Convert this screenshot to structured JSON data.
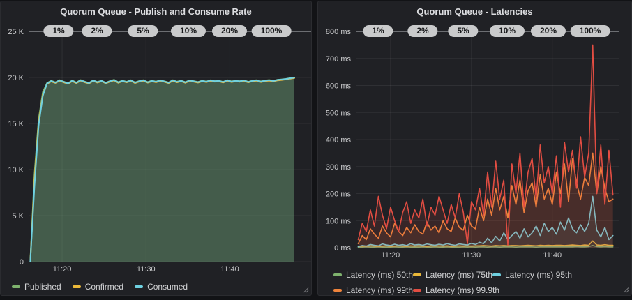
{
  "colors": {
    "page_bg": "#121316",
    "panel_bg": "#202125",
    "title_text": "#dcdde0",
    "axis_text": "#c8c9cb",
    "legend_text": "#d0d1d3",
    "grid": "rgba(255,255,255,0.07)",
    "annotation_line": "#85878b",
    "pill_bg": "#c9cacb",
    "pill_text": "#17181a",
    "handle": "#6f7175"
  },
  "chart_data": [
    {
      "type": "line",
      "title": "Quorum Queue - Publish and Consume Rate",
      "xlabel": "",
      "ylabel": "",
      "ylim": [
        0,
        25000
      ],
      "xlim": [
        -0.2,
        33.5
      ],
      "grid": true,
      "legend_position": "bottom",
      "y_ticks": [
        {
          "v": 25000,
          "label": "25 K"
        },
        {
          "v": 20000,
          "label": "20 K"
        },
        {
          "v": 15000,
          "label": "15 K"
        },
        {
          "v": 10000,
          "label": "10 K"
        },
        {
          "v": 5000,
          "label": "5 K"
        },
        {
          "v": 0,
          "label": "0"
        }
      ],
      "x_ticks": [
        {
          "t": 3.8,
          "label": "11:20"
        },
        {
          "t": 13.8,
          "label": "11:30"
        },
        {
          "t": 23.8,
          "label": "11:40"
        }
      ],
      "annotations": [
        "1%",
        "2%",
        "5%",
        "10%",
        "20%",
        "100%"
      ],
      "t_start": 0,
      "t_step": 0.5,
      "series": [
        {
          "name": "Published",
          "color": "#7EB26D",
          "fill_opacity": 0.35,
          "values": [
            150,
            9500,
            15500,
            18400,
            19400,
            19650,
            19480,
            19720,
            19550,
            19380,
            19680,
            19460,
            19730,
            19560,
            19420,
            19700,
            19520,
            19660,
            19440,
            19620,
            19760,
            19500,
            19670,
            19540,
            19710,
            19470,
            19630,
            19720,
            19510,
            19660,
            19560,
            19710,
            19600,
            19460,
            19720,
            19550,
            19670,
            19500,
            19700,
            19610,
            19520,
            19660,
            19570,
            19710,
            19620,
            19670,
            19530,
            19720,
            19580,
            19660,
            19610,
            19700,
            19540,
            19670,
            19720,
            19580,
            19680,
            19730,
            19650,
            19760,
            19800,
            19850,
            19930,
            19980
          ]
        },
        {
          "name": "Confirmed",
          "color": "#EAB839",
          "fill_opacity": 0,
          "values": [
            0,
            8900,
            15100,
            18100,
            19300,
            19560,
            19400,
            19640,
            19460,
            19300,
            19600,
            19380,
            19650,
            19480,
            19340,
            19620,
            19440,
            19580,
            19360,
            19540,
            19680,
            19420,
            19590,
            19460,
            19630,
            19390,
            19550,
            19640,
            19430,
            19580,
            19480,
            19630,
            19520,
            19380,
            19640,
            19470,
            19590,
            19420,
            19620,
            19530,
            19440,
            19580,
            19490,
            19630,
            19540,
            19590,
            19450,
            19640,
            19500,
            19580,
            19530,
            19620,
            19460,
            19590,
            19640,
            19500,
            19600,
            19650,
            19570,
            19680,
            19730,
            19790,
            19870,
            19940
          ]
        },
        {
          "name": "Consumed",
          "color": "#6ED0E0",
          "fill_opacity": 0.08,
          "values": [
            0,
            8200,
            14800,
            18000,
            19350,
            19620,
            19450,
            19700,
            19520,
            19350,
            19650,
            19430,
            19700,
            19530,
            19390,
            19680,
            19490,
            19640,
            19410,
            19600,
            19730,
            19470,
            19640,
            19510,
            19690,
            19440,
            19600,
            19700,
            19480,
            19640,
            19530,
            19690,
            19570,
            19430,
            19700,
            19520,
            19640,
            19470,
            19680,
            19580,
            19490,
            19640,
            19540,
            19690,
            19590,
            19640,
            19500,
            19700,
            19550,
            19640,
            19580,
            19680,
            19510,
            19640,
            19700,
            19550,
            19650,
            19710,
            19620,
            19740,
            19780,
            19840,
            19920,
            20000
          ]
        }
      ]
    },
    {
      "type": "line",
      "title": "Quorum Queue - Latencies",
      "xlabel": "",
      "ylabel": "",
      "ylim": [
        0,
        800
      ],
      "xlim": [
        -0.3,
        32.3
      ],
      "grid": true,
      "legend_position": "bottom",
      "y_ticks": [
        {
          "v": 800,
          "label": "800 ms"
        },
        {
          "v": 700,
          "label": "700 ms"
        },
        {
          "v": 600,
          "label": "600 ms"
        },
        {
          "v": 500,
          "label": "500 ms"
        },
        {
          "v": 400,
          "label": "400 ms"
        },
        {
          "v": 300,
          "label": "300 ms"
        },
        {
          "v": 200,
          "label": "200 ms"
        },
        {
          "v": 100,
          "label": "100 ms"
        },
        {
          "v": 0,
          "label": "0 ms"
        }
      ],
      "x_ticks": [
        {
          "t": 4,
          "label": "11:20"
        },
        {
          "t": 14,
          "label": "11:30"
        },
        {
          "t": 24,
          "label": "11:40"
        }
      ],
      "annotations": [
        "1%",
        "2%",
        "5%",
        "10%",
        "20%",
        "100%"
      ],
      "t_start": 0,
      "t_step": 0.5,
      "series": [
        {
          "name": "Latency (ms) 50th",
          "color": "#7EB26D",
          "fill_opacity": 0,
          "values": [
            2,
            2,
            3,
            2,
            2,
            3,
            2,
            2,
            2,
            3,
            2,
            2,
            3,
            2,
            2,
            2,
            3,
            2,
            2,
            3,
            2,
            2,
            3,
            2,
            2,
            2,
            3,
            2,
            3,
            2,
            3,
            3,
            2,
            3,
            3,
            2,
            3,
            3,
            3,
            2,
            3,
            3,
            3,
            3,
            2,
            3,
            3,
            3,
            3,
            3,
            3,
            3,
            3,
            3,
            4,
            3,
            3,
            4,
            8,
            4,
            3,
            4,
            3,
            3
          ]
        },
        {
          "name": "Latency (ms) 75th",
          "color": "#EAB839",
          "fill_opacity": 0,
          "values": [
            5,
            6,
            5,
            7,
            6,
            5,
            6,
            7,
            5,
            6,
            7,
            6,
            5,
            7,
            6,
            7,
            6,
            5,
            7,
            6,
            7,
            6,
            7,
            5,
            6,
            7,
            6,
            7,
            6,
            7,
            7,
            8,
            7,
            6,
            8,
            7,
            8,
            7,
            8,
            8,
            7,
            8,
            9,
            8,
            7,
            9,
            8,
            9,
            8,
            9,
            9,
            8,
            9,
            10,
            9,
            8,
            10,
            9,
            25,
            10,
            9,
            11,
            9,
            9
          ]
        },
        {
          "name": "Latency (ms) 95th",
          "color": "#6ED0E0",
          "fill_opacity": 0.08,
          "values": [
            4,
            8,
            6,
            12,
            9,
            7,
            14,
            10,
            8,
            13,
            9,
            11,
            8,
            15,
            10,
            12,
            9,
            14,
            11,
            9,
            13,
            10,
            15,
            11,
            9,
            14,
            12,
            10,
            16,
            12,
            20,
            15,
            35,
            18,
            42,
            25,
            55,
            30,
            45,
            60,
            35,
            70,
            40,
            55,
            80,
            45,
            90,
            60,
            75,
            50,
            95,
            65,
            110,
            70,
            55,
            85,
            60,
            90,
            190,
            65,
            40,
            75,
            30,
            45
          ]
        },
        {
          "name": "Latency (ms) 99th",
          "color": "#EF843C",
          "fill_opacity": 0.1,
          "values": [
            15,
            45,
            30,
            70,
            50,
            35,
            80,
            55,
            40,
            90,
            60,
            45,
            75,
            55,
            85,
            60,
            50,
            95,
            65,
            80,
            55,
            100,
            70,
            60,
            110,
            75,
            65,
            120,
            80,
            70,
            150,
            100,
            180,
            120,
            220,
            140,
            190,
            110,
            230,
            160,
            250,
            130,
            210,
            240,
            150,
            270,
            180,
            220,
            160,
            280,
            200,
            310,
            170,
            330,
            240,
            180,
            260,
            230,
            350,
            200,
            300,
            220,
            170,
            180
          ]
        },
        {
          "name": "Latency (ms) 99.9th",
          "color": "#E24D42",
          "fill_opacity": 0.12,
          "values": [
            30,
            90,
            60,
            140,
            80,
            190,
            120,
            70,
            150,
            100,
            60,
            130,
            170,
            90,
            140,
            110,
            180,
            80,
            150,
            120,
            190,
            140,
            90,
            160,
            110,
            200,
            130,
            15,
            170,
            140,
            220,
            120,
            280,
            150,
            320,
            180,
            250,
            10,
            310,
            200,
            350,
            150,
            280,
            330,
            180,
            380,
            240,
            300,
            200,
            340,
            150,
            390,
            280,
            360,
            220,
            410,
            260,
            350,
            750,
            200,
            380,
            160,
            360,
            195
          ]
        }
      ]
    }
  ]
}
